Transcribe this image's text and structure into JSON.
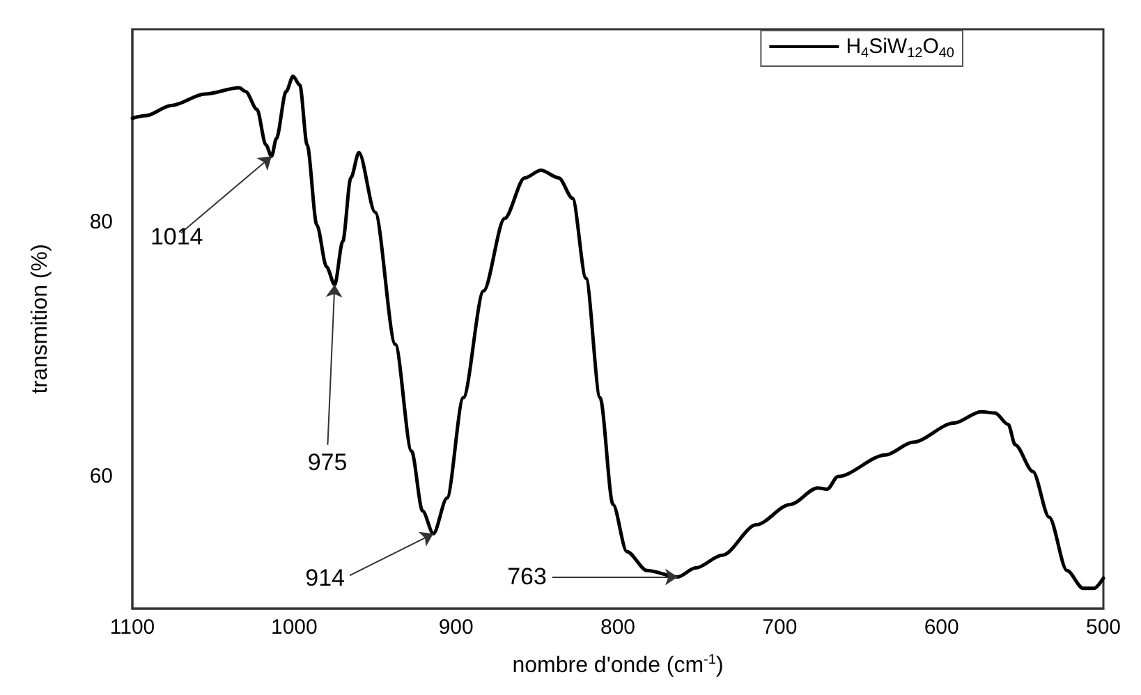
{
  "chart_data": {
    "type": "line",
    "xlabel": "nombre d'onde (cm$^{-1}$)",
    "ylabel": "transmition (%)",
    "xlim": [
      1100,
      500
    ],
    "xticks": [
      1100,
      1000,
      900,
      800,
      700,
      600,
      500
    ],
    "ylim": [
      49.6,
      95.2
    ],
    "yticks": [
      60,
      80
    ],
    "grid": false,
    "legend": "top right",
    "marker": "none",
    "line_style": "solid",
    "series": [
      {
        "name": "H$_{4}$SiW$_{12}$O$_{40}$",
        "color": "#000000",
        "x": [
          1100,
          1091.6,
          1076,
          1055,
          1034,
          1030,
          1023,
          1017.5,
          1014,
          1011,
          1005,
          1000.7,
          996.5,
          992,
          986,
          980,
          975,
          970,
          965,
          960,
          950,
          937.5,
          927.5,
          920.7,
          914,
          905.6,
          895.5,
          883,
          870,
          857.6,
          847.5,
          836.5,
          828,
          819.7,
          811,
          803,
          794.5,
          782,
          763,
          752,
          735.5,
          714.5,
          693.5,
          676.6,
          670.7,
          664,
          634.5,
          617.7,
          592.4,
          575.6,
          567,
          558.8,
          554.5,
          543.6,
          533.5,
          522.5,
          512.5,
          505.7,
          500
        ],
        "values": [
          88.2,
          88.4,
          89.2,
          90.1,
          90.6,
          90.3,
          88.9,
          86.1,
          85.2,
          86.6,
          90.3,
          91.5,
          90.8,
          86.1,
          79.8,
          76.5,
          75.1,
          78.5,
          83.5,
          85.5,
          80.8,
          70.4,
          62,
          57.3,
          55.5,
          58.3,
          66.2,
          74.6,
          80.3,
          83.5,
          84.1,
          83.5,
          81.9,
          75.6,
          66.2,
          57.8,
          54.1,
          52.6,
          52.1,
          52.8,
          53.8,
          56.2,
          57.8,
          59.1,
          59.0,
          60,
          61.7,
          62.7,
          64.2,
          65.1,
          65,
          64.1,
          62.5,
          60.4,
          56.8,
          52.6,
          51.2,
          51.2,
          52
        ]
      }
    ],
    "annotations": [
      {
        "text": "1014",
        "x": 1014,
        "y": 85.2
      },
      {
        "text": "975",
        "x": 975,
        "y": 75.1
      },
      {
        "text": "914",
        "x": 914,
        "y": 55.5
      },
      {
        "text": "763",
        "x": 763,
        "y": 52.1
      }
    ]
  }
}
